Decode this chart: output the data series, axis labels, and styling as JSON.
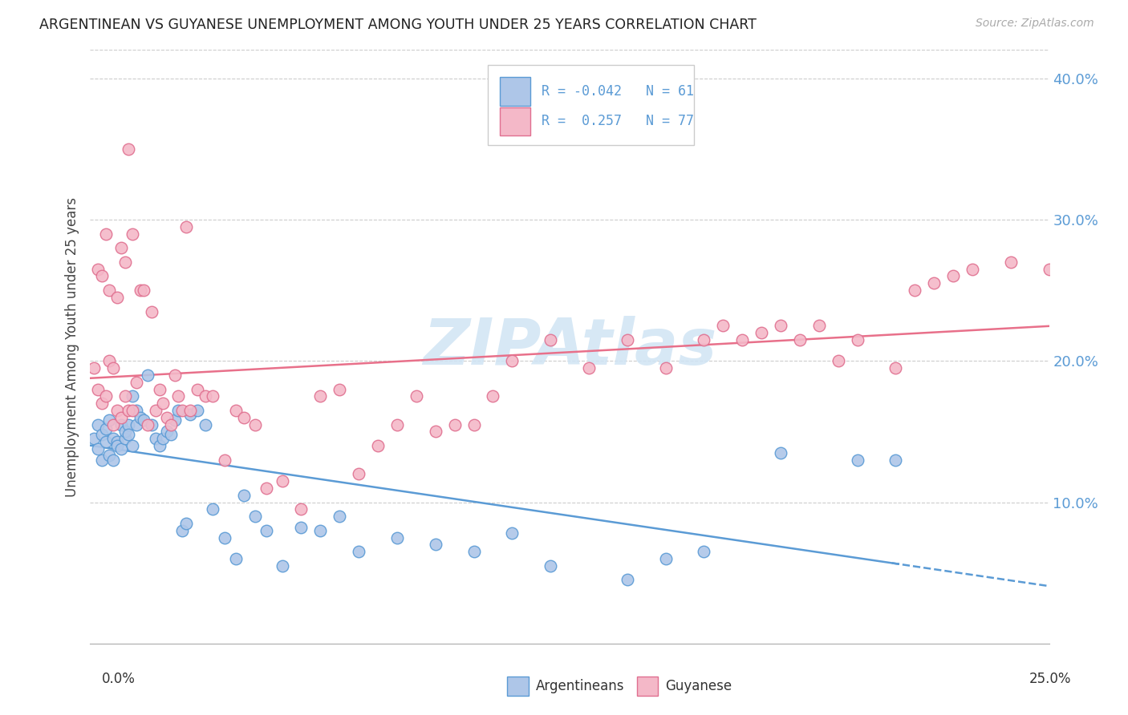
{
  "title": "ARGENTINEAN VS GUYANESE UNEMPLOYMENT AMONG YOUTH UNDER 25 YEARS CORRELATION CHART",
  "source": "Source: ZipAtlas.com",
  "ylabel": "Unemployment Among Youth under 25 years",
  "xlim": [
    0.0,
    0.25
  ],
  "ylim": [
    0.0,
    0.42
  ],
  "yticks": [
    0.1,
    0.2,
    0.3,
    0.4
  ],
  "ytick_labels": [
    "10.0%",
    "20.0%",
    "30.0%",
    "40.0%"
  ],
  "xtick_left": "0.0%",
  "xtick_right": "25.0%",
  "legend_R_arg": "-0.042",
  "legend_N_arg": "61",
  "legend_R_guy": "0.257",
  "legend_N_guy": "77",
  "color_arg": "#aec6e8",
  "color_guy": "#f4b8c8",
  "edge_color_arg": "#5b9bd5",
  "edge_color_guy": "#e07090",
  "line_color_arg": "#5b9bd5",
  "line_color_guy": "#e8708a",
  "watermark_color": "#d0e4f4",
  "background_color": "#ffffff",
  "argentineans_x": [
    0.001,
    0.002,
    0.002,
    0.003,
    0.003,
    0.004,
    0.004,
    0.005,
    0.005,
    0.006,
    0.006,
    0.007,
    0.007,
    0.008,
    0.008,
    0.009,
    0.009,
    0.01,
    0.01,
    0.011,
    0.011,
    0.012,
    0.012,
    0.013,
    0.014,
    0.015,
    0.016,
    0.017,
    0.018,
    0.019,
    0.02,
    0.021,
    0.022,
    0.023,
    0.024,
    0.025,
    0.026,
    0.028,
    0.03,
    0.032,
    0.035,
    0.038,
    0.04,
    0.043,
    0.046,
    0.05,
    0.055,
    0.06,
    0.065,
    0.07,
    0.08,
    0.09,
    0.1,
    0.11,
    0.12,
    0.14,
    0.15,
    0.16,
    0.18,
    0.2,
    0.21
  ],
  "argentineans_y": [
    0.145,
    0.138,
    0.155,
    0.148,
    0.13,
    0.143,
    0.152,
    0.133,
    0.158,
    0.13,
    0.145,
    0.143,
    0.14,
    0.138,
    0.155,
    0.145,
    0.15,
    0.155,
    0.148,
    0.175,
    0.14,
    0.155,
    0.165,
    0.16,
    0.158,
    0.19,
    0.155,
    0.145,
    0.14,
    0.145,
    0.15,
    0.148,
    0.158,
    0.165,
    0.08,
    0.085,
    0.162,
    0.165,
    0.155,
    0.095,
    0.075,
    0.06,
    0.105,
    0.09,
    0.08,
    0.055,
    0.082,
    0.08,
    0.09,
    0.065,
    0.075,
    0.07,
    0.065,
    0.078,
    0.055,
    0.045,
    0.06,
    0.065,
    0.135,
    0.13,
    0.13
  ],
  "guyanese_x": [
    0.001,
    0.002,
    0.002,
    0.003,
    0.003,
    0.004,
    0.004,
    0.005,
    0.005,
    0.006,
    0.006,
    0.007,
    0.007,
    0.008,
    0.008,
    0.009,
    0.009,
    0.01,
    0.01,
    0.011,
    0.011,
    0.012,
    0.013,
    0.014,
    0.015,
    0.016,
    0.017,
    0.018,
    0.019,
    0.02,
    0.021,
    0.022,
    0.023,
    0.024,
    0.025,
    0.026,
    0.028,
    0.03,
    0.032,
    0.035,
    0.038,
    0.04,
    0.043,
    0.046,
    0.05,
    0.055,
    0.06,
    0.065,
    0.07,
    0.075,
    0.08,
    0.085,
    0.09,
    0.095,
    0.1,
    0.105,
    0.11,
    0.12,
    0.13,
    0.14,
    0.15,
    0.16,
    0.165,
    0.17,
    0.175,
    0.18,
    0.185,
    0.19,
    0.195,
    0.2,
    0.21,
    0.215,
    0.22,
    0.225,
    0.23,
    0.24,
    0.25
  ],
  "guyanese_y": [
    0.195,
    0.265,
    0.18,
    0.17,
    0.26,
    0.29,
    0.175,
    0.2,
    0.25,
    0.195,
    0.155,
    0.245,
    0.165,
    0.28,
    0.16,
    0.27,
    0.175,
    0.35,
    0.165,
    0.29,
    0.165,
    0.185,
    0.25,
    0.25,
    0.155,
    0.235,
    0.165,
    0.18,
    0.17,
    0.16,
    0.155,
    0.19,
    0.175,
    0.165,
    0.295,
    0.165,
    0.18,
    0.175,
    0.175,
    0.13,
    0.165,
    0.16,
    0.155,
    0.11,
    0.115,
    0.095,
    0.175,
    0.18,
    0.12,
    0.14,
    0.155,
    0.175,
    0.15,
    0.155,
    0.155,
    0.175,
    0.2,
    0.215,
    0.195,
    0.215,
    0.195,
    0.215,
    0.225,
    0.215,
    0.22,
    0.225,
    0.215,
    0.225,
    0.2,
    0.215,
    0.195,
    0.25,
    0.255,
    0.26,
    0.265,
    0.27,
    0.265
  ]
}
